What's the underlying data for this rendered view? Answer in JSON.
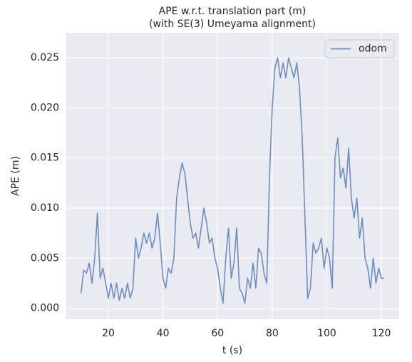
{
  "chart_data": {
    "type": "line",
    "title": [
      "APE w.r.t. translation part (m)",
      "(with SE(3) Umeyama alignment)"
    ],
    "x_label": "t (s)",
    "y_label": "APE (m)",
    "x": [
      10,
      11,
      12,
      13,
      14,
      15,
      16,
      17,
      18,
      19,
      20,
      21,
      22,
      23,
      24,
      25,
      26,
      27,
      28,
      29,
      30,
      31,
      32,
      33,
      34,
      35,
      36,
      37,
      38,
      39,
      40,
      41,
      42,
      43,
      44,
      45,
      46,
      47,
      48,
      49,
      50,
      51,
      52,
      53,
      54,
      55,
      56,
      57,
      58,
      59,
      60,
      61,
      62,
      63,
      64,
      65,
      66,
      67,
      68,
      69,
      70,
      71,
      72,
      73,
      74,
      75,
      76,
      77,
      78,
      79,
      80,
      81,
      82,
      83,
      84,
      85,
      86,
      87,
      88,
      89,
      90,
      91,
      92,
      93,
      94,
      95,
      96,
      97,
      98,
      99,
      100,
      101,
      102,
      103,
      104,
      105,
      106,
      107,
      108,
      109,
      110,
      111,
      112,
      113,
      114,
      115,
      116,
      117,
      118,
      119,
      120,
      121
    ],
    "series": [
      {
        "name": "odom",
        "color": "#6c8ebf",
        "values": [
          0.0015,
          0.0038,
          0.0035,
          0.0045,
          0.0025,
          0.005,
          0.0095,
          0.003,
          0.004,
          0.0025,
          0.001,
          0.0025,
          0.001,
          0.0025,
          0.0008,
          0.002,
          0.001,
          0.0025,
          0.001,
          0.002,
          0.007,
          0.005,
          0.006,
          0.0075,
          0.0065,
          0.0075,
          0.006,
          0.007,
          0.0095,
          0.0065,
          0.003,
          0.002,
          0.004,
          0.0035,
          0.005,
          0.011,
          0.013,
          0.0145,
          0.0135,
          0.011,
          0.0085,
          0.007,
          0.0075,
          0.006,
          0.008,
          0.01,
          0.0085,
          0.0065,
          0.007,
          0.005,
          0.004,
          0.002,
          0.0005,
          0.005,
          0.008,
          0.003,
          0.0045,
          0.008,
          0.002,
          0.0015,
          0.0005,
          0.003,
          0.002,
          0.0045,
          0.002,
          0.006,
          0.0055,
          0.0035,
          0.0025,
          0.013,
          0.02,
          0.024,
          0.025,
          0.023,
          0.0245,
          0.023,
          0.025,
          0.024,
          0.023,
          0.0245,
          0.022,
          0.017,
          0.009,
          0.001,
          0.002,
          0.0065,
          0.0055,
          0.006,
          0.007,
          0.004,
          0.006,
          0.005,
          0.002,
          0.015,
          0.017,
          0.013,
          0.014,
          0.012,
          0.016,
          0.011,
          0.009,
          0.011,
          0.007,
          0.009,
          0.005,
          0.004,
          0.002,
          0.005,
          0.0025,
          0.004,
          0.003,
          0.003
        ]
      }
    ],
    "xlim": [
      4.6,
      126.5
    ],
    "ylim": [
      -0.0011,
      0.0275
    ],
    "xticks": [
      20,
      40,
      60,
      80,
      100,
      120
    ],
    "yticks": [
      {
        "value": 0,
        "label": "0.000"
      },
      {
        "value": 0.005,
        "label": "0.005"
      },
      {
        "value": 0.01,
        "label": "0.010"
      },
      {
        "value": 0.015,
        "label": "0.015"
      },
      {
        "value": 0.02,
        "label": "0.020"
      },
      {
        "value": 0.025,
        "label": "0.025"
      }
    ],
    "grid": true,
    "legend": "upper right"
  }
}
